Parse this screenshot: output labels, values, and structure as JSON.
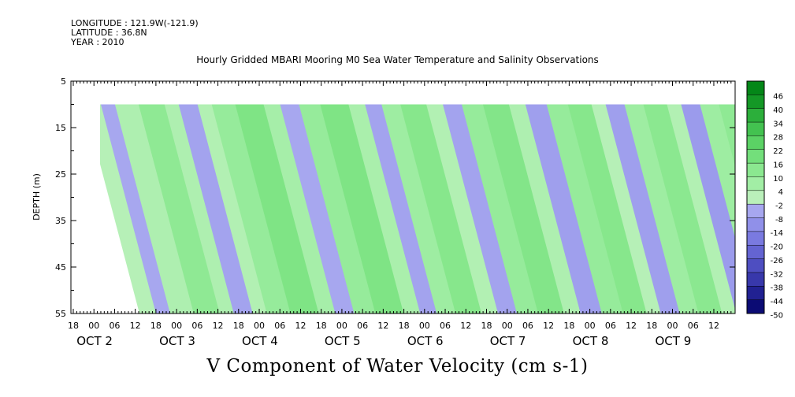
{
  "header": {
    "longitude": "LONGITUDE : 121.9W(-121.9)",
    "latitude": "LATITUDE : 36.8N",
    "year": "YEAR : 2010"
  },
  "chart_data": {
    "type": "heatmap",
    "title": "Hourly Gridded MBARI Mooring M0 Sea Water Temperature and Salinity Observations",
    "xlabel": "V Component of Water Velocity (cm s-1)",
    "ylabel": "DEPTH (m)",
    "ylim": [
      55,
      5
    ],
    "y_ticks": [
      5,
      15,
      25,
      35,
      45,
      55
    ],
    "x_hour_ticks": [
      "18",
      "00",
      "06",
      "12",
      "18",
      "00",
      "06",
      "12",
      "18",
      "00",
      "06",
      "12",
      "18",
      "00",
      "06",
      "12",
      "18",
      "00",
      "06",
      "12",
      "18",
      "00",
      "06",
      "12",
      "18",
      "00",
      "06",
      "12",
      "18",
      "00",
      "06",
      "12"
    ],
    "x_day_labels": [
      "OCT 2",
      "OCT 3",
      "OCT 4",
      "OCT 5",
      "OCT 6",
      "OCT 7",
      "OCT 8",
      "OCT 9"
    ],
    "data_depth_range": [
      10,
      55
    ],
    "colorbar": {
      "levels": [
        48,
        46,
        40,
        34,
        28,
        22,
        16,
        10,
        4,
        -2,
        -8,
        -14,
        -20,
        -26,
        -32,
        -38,
        -44,
        -50
      ],
      "labels": [
        "46",
        "40",
        "34",
        "28",
        "22",
        "16",
        "10",
        "4",
        "-2",
        "-8",
        "-14",
        "-20",
        "-26",
        "-32",
        "-38",
        "-44",
        "-50"
      ],
      "positive_color": "#00e040",
      "negative_color": "#3030ff"
    },
    "bands": [
      {
        "v": 2,
        "w": 1.4
      },
      {
        "v": -5,
        "w": 1.2
      },
      {
        "v": 4,
        "w": 2.0
      },
      {
        "v": 12,
        "w": 2.2
      },
      {
        "v": 4,
        "w": 1.2
      },
      {
        "v": -6,
        "w": 1.6
      },
      {
        "v": 3,
        "w": 1.2
      },
      {
        "v": 10,
        "w": 2.0
      },
      {
        "v": 16,
        "w": 2.4
      },
      {
        "v": 6,
        "w": 1.4
      },
      {
        "v": -5,
        "w": 1.6
      },
      {
        "v": 10,
        "w": 1.8
      },
      {
        "v": 16,
        "w": 2.4
      },
      {
        "v": 5,
        "w": 1.4
      },
      {
        "v": -6,
        "w": 1.4
      },
      {
        "v": 8,
        "w": 1.6
      },
      {
        "v": 14,
        "w": 2.2
      },
      {
        "v": 3,
        "w": 1.4
      },
      {
        "v": -6,
        "w": 1.6
      },
      {
        "v": 10,
        "w": 1.8
      },
      {
        "v": 15,
        "w": 2.2
      },
      {
        "v": 4,
        "w": 1.4
      },
      {
        "v": -7,
        "w": 1.8
      },
      {
        "v": 10,
        "w": 1.8
      },
      {
        "v": 14,
        "w": 2.0
      },
      {
        "v": 2,
        "w": 1.2
      },
      {
        "v": -7,
        "w": 1.6
      },
      {
        "v": 8,
        "w": 1.6
      },
      {
        "v": 13,
        "w": 2.0
      },
      {
        "v": 3,
        "w": 1.2
      },
      {
        "v": -8,
        "w": 1.6
      },
      {
        "v": 8,
        "w": 1.6
      },
      {
        "v": 12,
        "w": 1.8
      },
      {
        "v": -4,
        "w": 1.4
      },
      {
        "v": -10,
        "w": 1.8
      },
      {
        "v": 4,
        "w": 1.6
      },
      {
        "v": -3,
        "w": 1.4
      },
      {
        "v": -6,
        "w": 1.4
      }
    ],
    "grid": false
  }
}
